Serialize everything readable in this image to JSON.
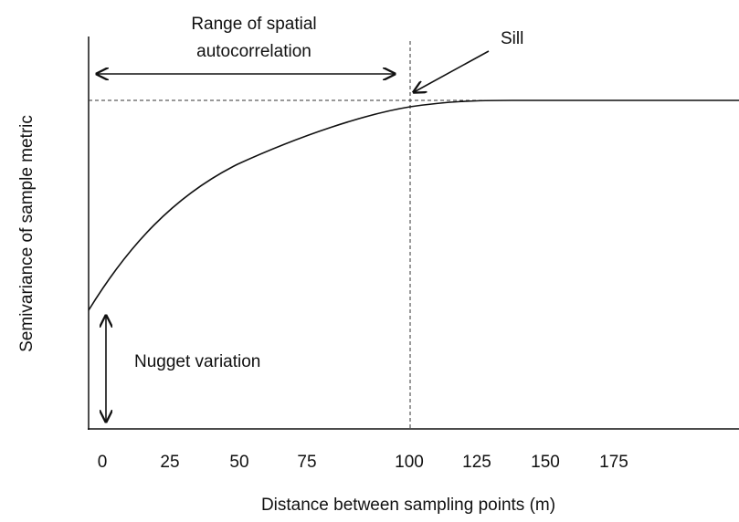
{
  "annotations": {
    "range": [
      "Range of spatial",
      "autocorrelation"
    ],
    "sill": "Sill",
    "nugget": "Nugget variation"
  },
  "axes": {
    "y_label": "Semivariance of sample metric",
    "x_label": "Distance between  sampling points (m)",
    "x_ticks": [
      "0",
      "25",
      "50",
      "75",
      "100",
      "125",
      "150",
      "175"
    ]
  }
}
